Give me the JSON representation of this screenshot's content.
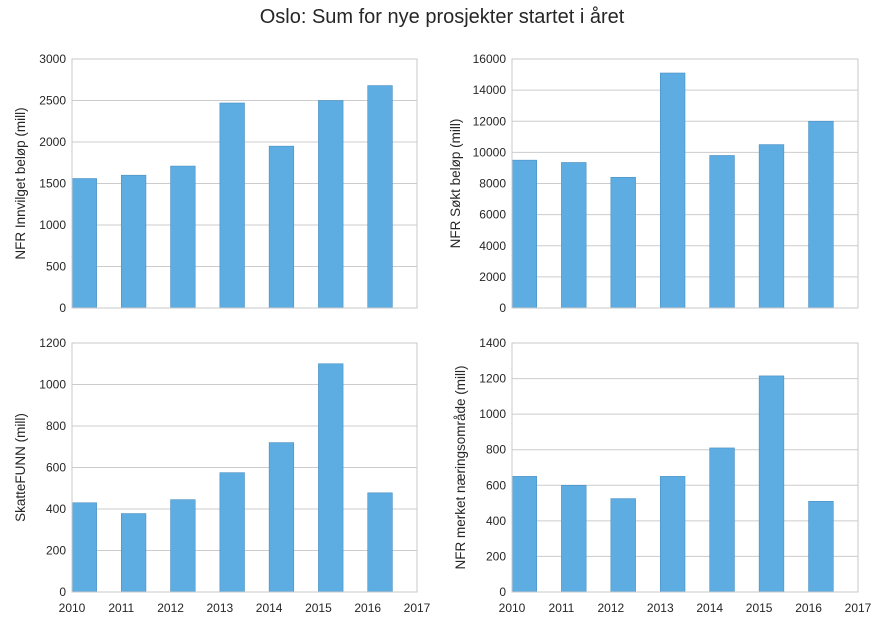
{
  "figure": {
    "title": "Oslo: Sum for nye prosjekter startet i året"
  },
  "chart_data": [
    {
      "type": "bar",
      "x": [
        2010,
        2011,
        2012,
        2013,
        2014,
        2015,
        2016
      ],
      "values": [
        1560,
        1600,
        1710,
        2470,
        1950,
        2500,
        2680
      ],
      "ylabel": "NFR Innvilget beløp (mill)",
      "ylim": [
        0,
        3000
      ],
      "yticks": [
        0,
        500,
        1000,
        1500,
        2000,
        2500,
        3000
      ],
      "xlim": [
        2010,
        2017
      ],
      "xticks": [],
      "grid": true,
      "color": "#5DADE2"
    },
    {
      "type": "bar",
      "x": [
        2010,
        2011,
        2012,
        2013,
        2014,
        2015,
        2016
      ],
      "values": [
        9500,
        9350,
        8400,
        15100,
        9800,
        10500,
        12000
      ],
      "ylabel": "NFR Søkt beløp (mill)",
      "ylim": [
        0,
        16000
      ],
      "yticks": [
        0,
        2000,
        4000,
        6000,
        8000,
        10000,
        12000,
        14000,
        16000
      ],
      "xlim": [
        2010,
        2017
      ],
      "xticks": [],
      "grid": true,
      "color": "#5DADE2"
    },
    {
      "type": "bar",
      "x": [
        2010,
        2011,
        2012,
        2013,
        2014,
        2015,
        2016
      ],
      "values": [
        430,
        378,
        445,
        575,
        720,
        1100,
        478
      ],
      "ylabel": "SkatteFUNN (mill)",
      "ylim": [
        0,
        1200
      ],
      "yticks": [
        0,
        200,
        400,
        600,
        800,
        1000,
        1200
      ],
      "xlim": [
        2010,
        2017
      ],
      "xticks": [
        2010,
        2011,
        2012,
        2013,
        2014,
        2015,
        2016,
        2017
      ],
      "grid": true,
      "color": "#5DADE2"
    },
    {
      "type": "bar",
      "x": [
        2010,
        2011,
        2012,
        2013,
        2014,
        2015,
        2016
      ],
      "values": [
        650,
        600,
        525,
        650,
        810,
        1215,
        510
      ],
      "ylabel": "NFR merket næringsområde (mill)",
      "ylim": [
        0,
        1400
      ],
      "yticks": [
        0,
        200,
        400,
        600,
        800,
        1000,
        1200,
        1400
      ],
      "xlim": [
        2010,
        2017
      ],
      "xticks": [
        2010,
        2011,
        2012,
        2013,
        2014,
        2015,
        2016,
        2017
      ],
      "grid": true,
      "color": "#5DADE2"
    }
  ]
}
